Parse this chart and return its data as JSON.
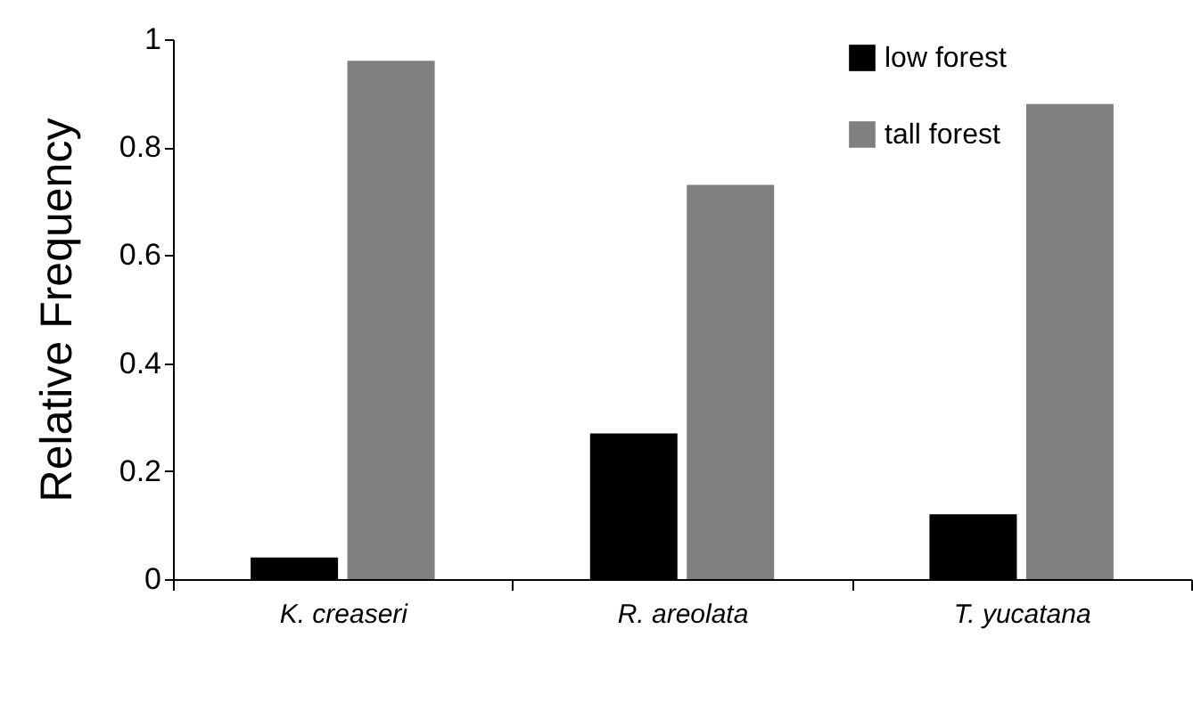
{
  "chart_data": {
    "type": "bar",
    "ylabel": "Relative Frequency",
    "categories": [
      "K. creaseri",
      "R. areolata",
      "T. yucatana"
    ],
    "series": [
      {
        "name": "low forest",
        "color": "#000000",
        "values": [
          0.04,
          0.27,
          0.12
        ]
      },
      {
        "name": "tall forest",
        "color": "#808080",
        "values": [
          0.96,
          0.73,
          0.88
        ]
      }
    ],
    "ylim": [
      0,
      1
    ],
    "yticks": [
      0,
      0.2,
      0.4,
      0.6,
      0.8,
      1
    ],
    "grid": false,
    "legend": "top right"
  }
}
